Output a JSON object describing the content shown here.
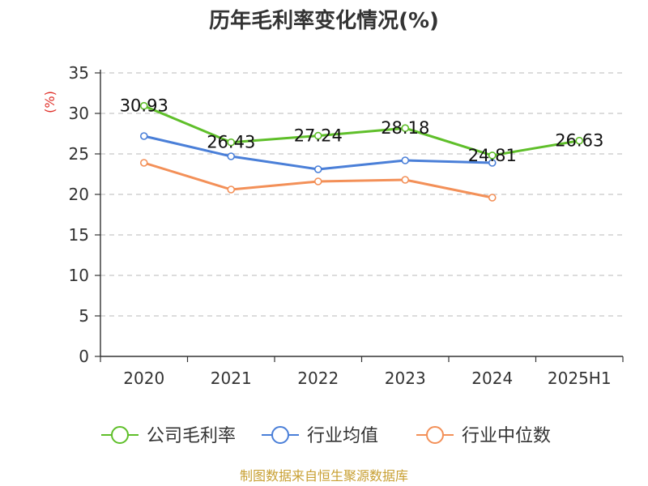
{
  "chart_data": {
    "type": "line",
    "title": "历年毛利率变化情况(%)",
    "unit_label": "(%)",
    "categories": [
      "2020",
      "2021",
      "2022",
      "2023",
      "2024",
      "2025H1"
    ],
    "ylim": [
      0,
      35
    ],
    "yticks": [
      "0",
      "5",
      "10",
      "15",
      "20",
      "25",
      "30",
      "35"
    ],
    "grid": true,
    "legend_position": "bottom",
    "series": [
      {
        "name": "公司毛利率",
        "color": "#5fbf2a",
        "values": [
          30.93,
          26.43,
          27.24,
          28.18,
          24.81,
          26.63
        ],
        "labels": [
          "30.93",
          "26.43",
          "27.24",
          "28.18",
          "24.81",
          "26.63"
        ]
      },
      {
        "name": "行业均值",
        "color": "#4a7fd8",
        "values": [
          27.2,
          24.7,
          23.1,
          24.2,
          23.9,
          null
        ]
      },
      {
        "name": "行业中位数",
        "color": "#f39058",
        "values": [
          23.9,
          20.6,
          21.6,
          21.8,
          19.6,
          null
        ]
      }
    ],
    "source": "制图数据来自恒生聚源数据库"
  }
}
